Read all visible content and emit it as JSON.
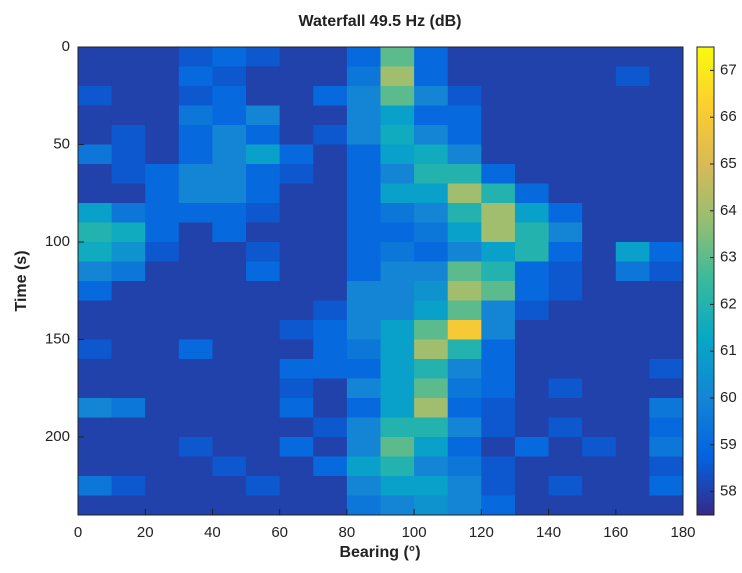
{
  "chart_data": {
    "type": "heatmap",
    "title": "Waterfall 49.5 Hz (dB)",
    "x_label": "Bearing (°)",
    "y_label": "Time (s)",
    "x": [
      5,
      15,
      25,
      35,
      45,
      55,
      65,
      75,
      85,
      95,
      105,
      115,
      125,
      135,
      145,
      155,
      165,
      175
    ],
    "y": [
      5,
      15,
      25,
      35,
      45,
      55,
      65,
      75,
      85,
      95,
      105,
      115,
      125,
      135,
      145,
      155,
      165,
      175,
      185,
      195,
      205,
      215,
      225,
      235
    ],
    "z": [
      [
        58,
        58,
        58,
        58.5,
        59,
        58.5,
        58,
        58,
        59,
        63,
        59,
        58,
        58,
        58,
        58,
        58,
        58,
        58
      ],
      [
        58,
        58,
        58,
        59,
        58.5,
        58,
        58,
        58,
        59.5,
        64,
        59,
        58,
        58,
        58,
        58,
        58,
        58.5,
        58
      ],
      [
        58.5,
        58,
        58,
        58.5,
        59,
        58,
        58,
        59,
        60,
        63,
        60,
        58.5,
        58,
        58,
        58,
        58,
        58,
        58
      ],
      [
        58,
        58,
        58,
        59.5,
        59,
        60,
        58,
        58,
        60,
        61,
        59,
        59,
        58,
        58,
        58,
        58,
        58,
        58
      ],
      [
        58,
        58.5,
        58,
        59,
        60,
        59,
        58,
        58.5,
        60,
        61.5,
        60,
        59,
        58,
        58,
        58,
        58,
        58,
        58
      ],
      [
        59.5,
        58.5,
        58,
        59,
        60,
        61,
        59,
        58,
        59,
        61,
        61.5,
        60,
        58,
        58,
        58,
        58,
        58,
        58
      ],
      [
        58,
        58.5,
        59,
        60,
        60,
        59,
        58.5,
        58,
        59,
        60,
        62,
        62,
        59,
        58,
        58,
        58,
        58,
        58
      ],
      [
        58,
        58,
        59,
        60,
        60,
        59,
        58,
        58,
        59,
        61,
        61,
        64,
        62,
        59,
        58,
        58,
        58,
        58
      ],
      [
        61,
        59.5,
        59,
        59,
        59,
        58.5,
        58,
        58,
        59,
        59.5,
        60,
        62,
        64,
        61,
        59,
        58,
        58,
        58
      ],
      [
        62,
        61.5,
        59,
        58,
        59,
        58,
        58,
        58,
        59,
        59,
        59.5,
        61,
        64,
        62,
        60,
        58,
        58,
        58
      ],
      [
        61.5,
        60.5,
        58.5,
        58,
        58,
        58.5,
        58,
        58,
        59,
        59.5,
        59,
        60,
        61,
        62,
        59,
        58,
        61,
        59
      ],
      [
        60,
        59.5,
        58,
        58,
        58,
        59,
        58,
        58,
        59,
        60,
        60,
        63,
        62,
        59,
        58.5,
        58,
        59.5,
        58.5
      ],
      [
        59,
        58,
        58,
        58,
        58,
        58,
        58,
        58,
        60,
        60,
        60.5,
        64,
        63,
        59,
        58.5,
        58,
        58,
        58
      ],
      [
        58,
        58,
        58,
        58,
        58,
        58,
        58,
        58.5,
        60,
        60,
        61,
        63,
        60,
        58.5,
        58,
        58,
        58,
        58
      ],
      [
        58,
        58,
        58,
        58,
        58,
        58,
        58.5,
        59,
        60,
        61,
        63,
        66,
        60,
        58,
        58,
        58,
        58,
        58
      ],
      [
        58.5,
        58,
        58,
        59,
        58,
        58,
        58,
        59,
        59.5,
        61,
        64,
        62,
        59,
        58,
        58,
        58,
        58,
        58
      ],
      [
        58,
        58,
        58,
        58,
        58,
        58,
        59,
        59,
        59,
        61,
        62,
        60,
        59,
        58,
        58,
        58,
        58,
        58.5
      ],
      [
        58,
        58,
        58,
        58,
        58,
        58,
        58.5,
        58,
        60,
        61,
        63,
        59.5,
        59,
        58,
        58.5,
        58,
        58,
        58
      ],
      [
        60,
        59.5,
        58,
        58,
        58,
        58,
        59,
        58,
        59,
        61,
        64,
        59,
        58.5,
        58,
        58,
        58,
        58,
        59.5
      ],
      [
        58,
        58,
        58,
        58,
        58,
        58,
        58,
        58.5,
        60,
        62,
        62,
        60,
        58.5,
        58,
        58.5,
        58,
        58,
        59
      ],
      [
        58,
        58,
        58,
        58.5,
        58,
        58,
        59,
        58,
        60,
        63,
        61,
        59,
        58,
        59,
        58,
        58.5,
        58,
        59.5
      ],
      [
        58,
        58,
        58,
        58,
        58.5,
        58,
        58,
        59,
        61,
        62,
        60,
        59.5,
        58.5,
        58,
        58,
        58,
        58,
        58.5
      ],
      [
        59.5,
        58.5,
        58,
        58,
        58,
        58.5,
        58,
        58,
        60,
        61,
        61,
        60,
        58.5,
        58,
        58.5,
        58,
        58,
        59
      ],
      [
        58,
        58,
        58,
        58,
        58,
        58,
        58,
        58,
        59.5,
        60,
        60.5,
        60,
        59,
        58,
        58,
        58,
        58,
        58
      ]
    ],
    "xlim": [
      0,
      180
    ],
    "xticks": [
      0,
      20,
      40,
      60,
      80,
      100,
      120,
      140,
      160,
      180
    ],
    "ylim": [
      0,
      240
    ],
    "yticks": [
      0,
      50,
      100,
      150,
      200
    ],
    "y_inverted": true,
    "clim": [
      57.5,
      67.5
    ],
    "cticks": [
      58,
      59,
      60,
      61,
      62,
      63,
      64,
      65,
      66,
      67
    ],
    "colormap": [
      "#352a87",
      "#0363e1",
      "#1485d4",
      "#06a7c6",
      "#38b99e",
      "#92bf73",
      "#d9ba56",
      "#fcce2e",
      "#f9fb0e"
    ]
  }
}
